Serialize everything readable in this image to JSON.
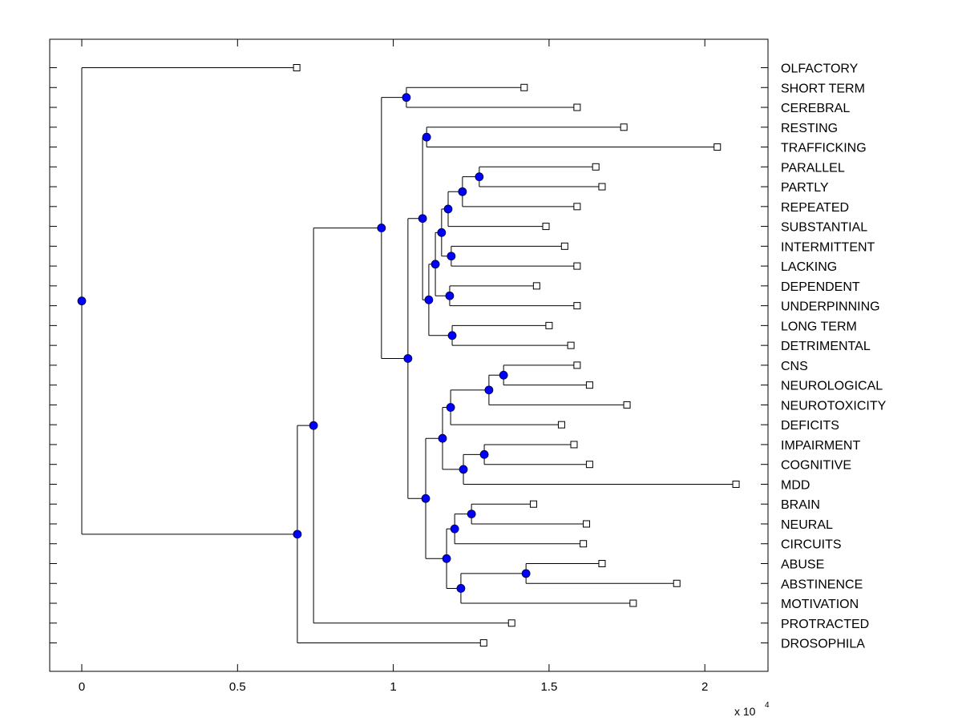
{
  "chart_data": {
    "type": "dendrogram",
    "title": "",
    "xlabel": "",
    "ylabel": "",
    "x_multiplier_label": "x 10",
    "x_multiplier_exponent": "4",
    "xlim": [
      -0.1,
      2.2
    ],
    "xticks": [
      0,
      0.5,
      1,
      1.5,
      2
    ],
    "xtick_labels": [
      "0",
      "0.5",
      "1",
      "1.5",
      "2"
    ],
    "grid": false,
    "colors": {
      "internal_node": "#0000ff",
      "leaf_fill": "#ffffff",
      "line": "#000000"
    },
    "leaves": [
      {
        "label": "OLFACTORY",
        "x": 0.69
      },
      {
        "label": "SHORT TERM",
        "x": 1.42
      },
      {
        "label": "CEREBRAL",
        "x": 1.59
      },
      {
        "label": "RESTING",
        "x": 1.74
      },
      {
        "label": "TRAFFICKING",
        "x": 2.04
      },
      {
        "label": "PARALLEL",
        "x": 1.65
      },
      {
        "label": "PARTLY",
        "x": 1.67
      },
      {
        "label": "REPEATED",
        "x": 1.59
      },
      {
        "label": "SUBSTANTIAL",
        "x": 1.49
      },
      {
        "label": "INTERMITTENT",
        "x": 1.55
      },
      {
        "label": "LACKING",
        "x": 1.59
      },
      {
        "label": "DEPENDENT",
        "x": 1.46
      },
      {
        "label": "UNDERPINNING",
        "x": 1.59
      },
      {
        "label": "LONG TERM",
        "x": 1.5
      },
      {
        "label": "DETRIMENTAL",
        "x": 1.57
      },
      {
        "label": "CNS",
        "x": 1.59
      },
      {
        "label": "NEUROLOGICAL",
        "x": 1.63
      },
      {
        "label": "NEUROTOXICITY",
        "x": 1.75
      },
      {
        "label": "DEFICITS",
        "x": 1.54
      },
      {
        "label": "IMPAIRMENT",
        "x": 1.58
      },
      {
        "label": "COGNITIVE",
        "x": 1.63
      },
      {
        "label": "MDD",
        "x": 2.1
      },
      {
        "label": "BRAIN",
        "x": 1.45
      },
      {
        "label": "NEURAL",
        "x": 1.62
      },
      {
        "label": "CIRCUITS",
        "x": 1.61
      },
      {
        "label": "ABUSE",
        "x": 1.67
      },
      {
        "label": "ABSTINENCE",
        "x": 1.91
      },
      {
        "label": "MOTIVATION",
        "x": 1.77
      },
      {
        "label": "PROTRACTED",
        "x": 1.38
      },
      {
        "label": "DROSOPHILA",
        "x": 1.29
      }
    ],
    "tree": {
      "x": 0.0,
      "children": [
        {
          "leaf": 0
        },
        {
          "x": 0.692,
          "children": [
            {
              "x": 0.744,
              "children": [
                {
                  "x": 0.962,
                  "children": [
                    {
                      "x": 1.042,
                      "children": [
                        {
                          "leaf": 1
                        },
                        {
                          "leaf": 2
                        }
                      ]
                    },
                    {
                      "x": 1.047,
                      "children": [
                        {
                          "x": 1.094,
                          "children": [
                            {
                              "x": 1.107,
                              "children": [
                                {
                                  "leaf": 3
                                },
                                {
                                  "leaf": 4
                                }
                              ]
                            },
                            {
                              "x": 1.114,
                              "children": [
                                {
                                  "x": 1.135,
                                  "children": [
                                    {
                                      "x": 1.155,
                                      "children": [
                                        {
                                          "x": 1.176,
                                          "children": [
                                            {
                                              "x": 1.222,
                                              "children": [
                                                {
                                                  "x": 1.276,
                                                  "children": [
                                                    {
                                                      "leaf": 5
                                                    },
                                                    {
                                                      "leaf": 6
                                                    }
                                                  ]
                                                },
                                                {
                                                  "leaf": 7
                                                }
                                              ]
                                            },
                                            {
                                              "leaf": 8
                                            }
                                          ]
                                        },
                                        {
                                          "x": 1.186,
                                          "children": [
                                            {
                                              "leaf": 9
                                            },
                                            {
                                              "leaf": 10
                                            }
                                          ]
                                        }
                                      ]
                                    },
                                    {
                                      "x": 1.181,
                                      "children": [
                                        {
                                          "leaf": 11
                                        },
                                        {
                                          "leaf": 12
                                        }
                                      ]
                                    }
                                  ]
                                },
                                {
                                  "x": 1.189,
                                  "children": [
                                    {
                                      "leaf": 13
                                    },
                                    {
                                      "leaf": 14
                                    }
                                  ]
                                }
                              ]
                            }
                          ]
                        },
                        {
                          "x": 1.104,
                          "children": [
                            {
                              "x": 1.158,
                              "children": [
                                {
                                  "x": 1.184,
                                  "children": [
                                    {
                                      "x": 1.307,
                                      "children": [
                                        {
                                          "x": 1.354,
                                          "children": [
                                            {
                                              "leaf": 15
                                            },
                                            {
                                              "leaf": 16
                                            }
                                          ]
                                        },
                                        {
                                          "leaf": 17
                                        }
                                      ]
                                    },
                                    {
                                      "leaf": 18
                                    }
                                  ]
                                },
                                {
                                  "x": 1.225,
                                  "children": [
                                    {
                                      "x": 1.292,
                                      "children": [
                                        {
                                          "leaf": 19
                                        },
                                        {
                                          "leaf": 20
                                        }
                                      ]
                                    },
                                    {
                                      "leaf": 21
                                    }
                                  ]
                                }
                              ]
                            },
                            {
                              "x": 1.171,
                              "children": [
                                {
                                  "x": 1.197,
                                  "children": [
                                    {
                                      "x": 1.251,
                                      "children": [
                                        {
                                          "leaf": 22
                                        },
                                        {
                                          "leaf": 23
                                        }
                                      ]
                                    },
                                    {
                                      "leaf": 24
                                    }
                                  ]
                                },
                                {
                                  "x": 1.217,
                                  "children": [
                                    {
                                      "x": 1.426,
                                      "children": [
                                        {
                                          "leaf": 25
                                        },
                                        {
                                          "leaf": 26
                                        }
                                      ]
                                    },
                                    {
                                      "leaf": 27
                                    }
                                  ]
                                }
                              ]
                            }
                          ]
                        }
                      ]
                    }
                  ]
                },
                {
                  "leaf": 28
                }
              ]
            },
            {
              "leaf": 29
            }
          ]
        }
      ]
    }
  }
}
